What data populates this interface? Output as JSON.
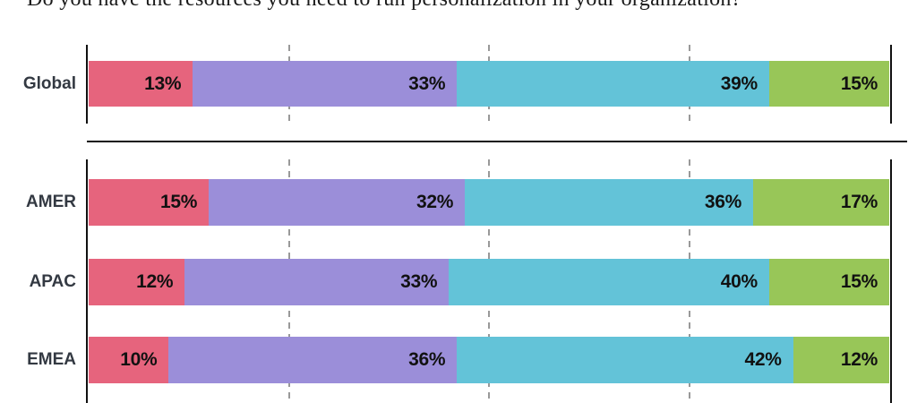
{
  "page": {
    "background": "#ffffff"
  },
  "chart_data": {
    "type": "bar",
    "orientation": "horizontal",
    "stacked": true,
    "title": "Do you have the resources you need to run personalization in your organization?",
    "unit": "%",
    "xlim": [
      0,
      100
    ],
    "gridlines_at_percent": [
      25,
      50,
      75
    ],
    "legend": "none",
    "value_label_format": "{v}%",
    "segment_colors": [
      "#e6647d",
      "#9b8ed9",
      "#63c3d8",
      "#98c658"
    ],
    "groups": [
      {
        "name": "global",
        "rows": [
          {
            "label": "Global",
            "values": [
              13,
              33,
              39,
              15
            ]
          }
        ]
      },
      {
        "name": "regions",
        "rows": [
          {
            "label": "AMER",
            "values": [
              15,
              32,
              36,
              17
            ]
          },
          {
            "label": "APAC",
            "values": [
              12,
              33,
              40,
              15
            ]
          },
          {
            "label": "EMEA",
            "values": [
              10,
              36,
              42,
              12
            ]
          }
        ]
      }
    ]
  },
  "styles": {
    "axis_color": "#111111",
    "gridline_color": "#999999",
    "row_label_color": "#333942",
    "value_label_color": "#111111",
    "separator_color": "#111111"
  }
}
